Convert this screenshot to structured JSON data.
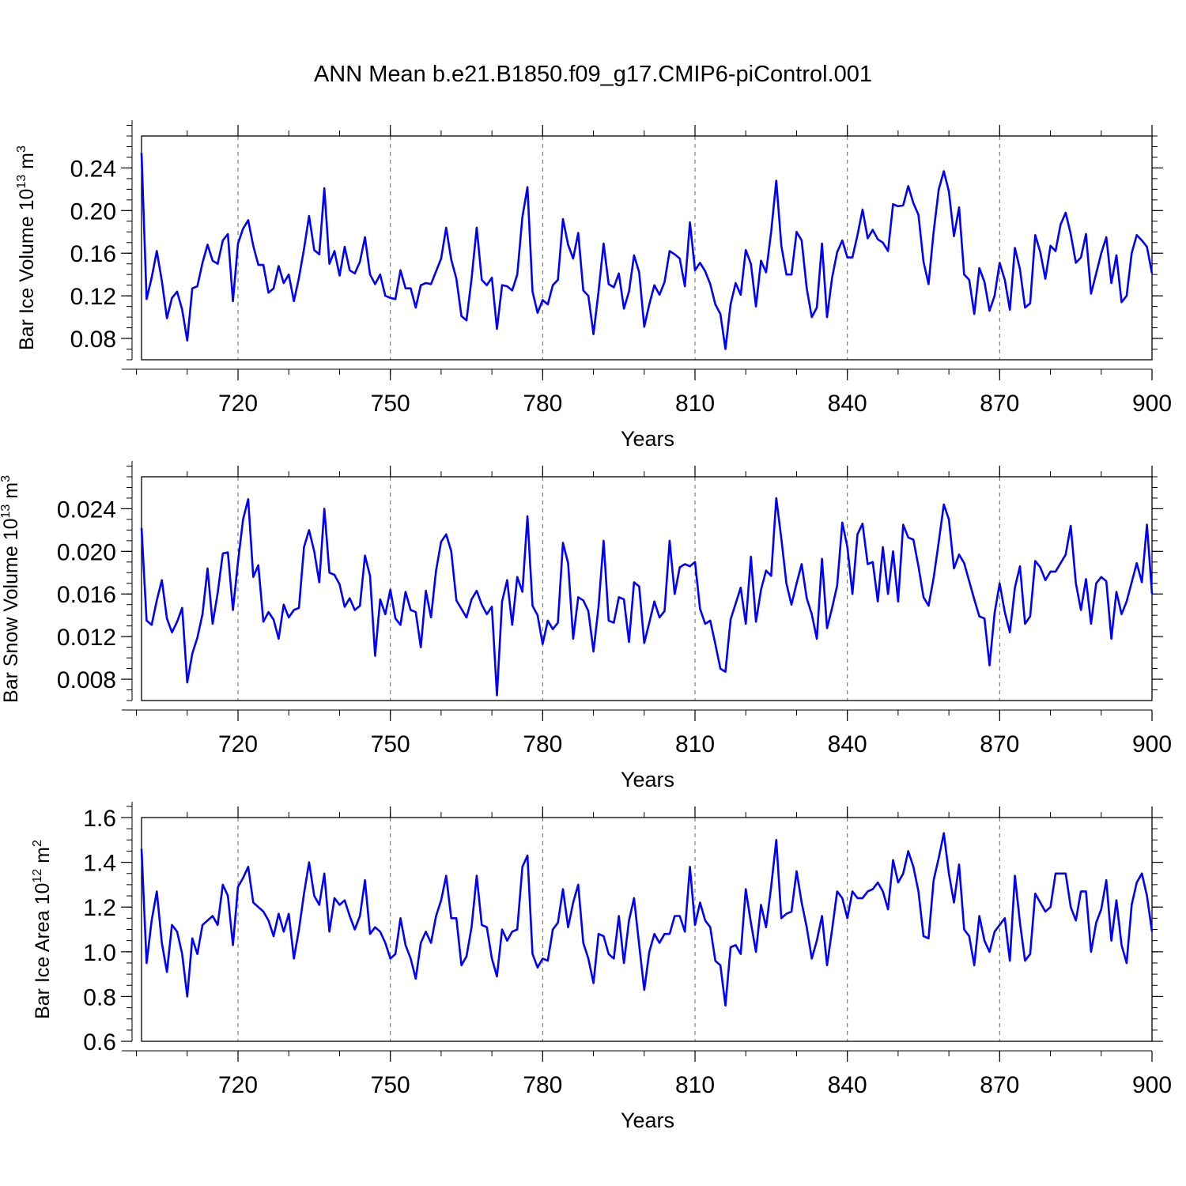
{
  "title": "ANN Mean b.e21.B1850.f09_g17.CMIP6-piControl.001",
  "line_color": "#0000FF",
  "chart_data": [
    {
      "type": "line",
      "id": "ice-volume",
      "ylabel_main": "Bar Ice Volume 10",
      "ylabel_exp": "13",
      "ylabel_unit": " m",
      "ylabel_unit_exp": "3",
      "xlabel": "Years",
      "xlim": [
        701,
        900
      ],
      "ylim": [
        0.06,
        0.27
      ],
      "xticks": [
        720,
        750,
        780,
        810,
        840,
        870,
        900
      ],
      "xtick_labels": [
        "720",
        "750",
        "780",
        "810",
        "840",
        "870",
        "900"
      ],
      "yticks": [
        0.08,
        0.12,
        0.16,
        0.2,
        0.24
      ],
      "ytick_labels": [
        "0.08",
        "0.12",
        "0.16",
        "0.20",
        "0.24"
      ],
      "x_start": 701,
      "values": [
        0.254,
        0.117,
        0.137,
        0.162,
        0.134,
        0.099,
        0.118,
        0.124,
        0.107,
        0.078,
        0.127,
        0.129,
        0.151,
        0.168,
        0.153,
        0.15,
        0.172,
        0.178,
        0.115,
        0.169,
        0.183,
        0.191,
        0.167,
        0.149,
        0.149,
        0.123,
        0.127,
        0.148,
        0.132,
        0.14,
        0.115,
        0.137,
        0.164,
        0.195,
        0.163,
        0.159,
        0.221,
        0.15,
        0.162,
        0.139,
        0.166,
        0.144,
        0.141,
        0.152,
        0.175,
        0.14,
        0.131,
        0.14,
        0.12,
        0.118,
        0.117,
        0.144,
        0.127,
        0.127,
        0.109,
        0.13,
        0.132,
        0.131,
        0.143,
        0.155,
        0.184,
        0.154,
        0.136,
        0.101,
        0.097,
        0.136,
        0.184,
        0.135,
        0.13,
        0.137,
        0.089,
        0.13,
        0.129,
        0.125,
        0.14,
        0.194,
        0.222,
        0.124,
        0.104,
        0.116,
        0.112,
        0.13,
        0.135,
        0.192,
        0.168,
        0.155,
        0.179,
        0.125,
        0.12,
        0.084,
        0.124,
        0.169,
        0.131,
        0.128,
        0.141,
        0.108,
        0.124,
        0.158,
        0.142,
        0.091,
        0.112,
        0.13,
        0.121,
        0.133,
        0.162,
        0.159,
        0.155,
        0.129,
        0.189,
        0.144,
        0.151,
        0.143,
        0.131,
        0.112,
        0.103,
        0.07,
        0.112,
        0.132,
        0.121,
        0.163,
        0.15,
        0.11,
        0.153,
        0.142,
        0.18,
        0.228,
        0.167,
        0.14,
        0.14,
        0.18,
        0.172,
        0.127,
        0.1,
        0.109,
        0.169,
        0.1,
        0.137,
        0.161,
        0.172,
        0.156,
        0.156,
        0.177,
        0.201,
        0.174,
        0.182,
        0.173,
        0.17,
        0.162,
        0.206,
        0.204,
        0.205,
        0.223,
        0.207,
        0.196,
        0.152,
        0.131,
        0.18,
        0.22,
        0.237,
        0.218,
        0.176,
        0.203,
        0.14,
        0.135,
        0.103,
        0.146,
        0.133,
        0.106,
        0.12,
        0.151,
        0.135,
        0.107,
        0.165,
        0.145,
        0.109,
        0.113,
        0.177,
        0.161,
        0.136,
        0.167,
        0.162,
        0.187,
        0.198,
        0.178,
        0.151,
        0.156,
        0.178,
        0.122,
        0.141,
        0.16,
        0.175,
        0.132,
        0.158,
        0.114,
        0.12,
        0.16,
        0.177,
        0.172,
        0.166,
        0.141
      ]
    },
    {
      "type": "line",
      "id": "snow-volume",
      "ylabel_main": "Bar Snow Volume 10",
      "ylabel_exp": "13",
      "ylabel_unit": " m",
      "ylabel_unit_exp": "3",
      "xlabel": "Years",
      "xlim": [
        701,
        900
      ],
      "ylim": [
        0.006,
        0.027
      ],
      "xticks": [
        720,
        750,
        780,
        810,
        840,
        870,
        900
      ],
      "xtick_labels": [
        "720",
        "750",
        "780",
        "810",
        "840",
        "870",
        "900"
      ],
      "yticks": [
        0.008,
        0.012,
        0.016,
        0.02,
        0.024
      ],
      "ytick_labels": [
        "0.008",
        "0.012",
        "0.016",
        "0.020",
        "0.024"
      ],
      "x_start": 701,
      "values": [
        0.0222,
        0.0135,
        0.0131,
        0.0154,
        0.0173,
        0.0137,
        0.0124,
        0.0134,
        0.0147,
        0.0077,
        0.0104,
        0.0119,
        0.0141,
        0.0184,
        0.0132,
        0.0161,
        0.0198,
        0.0199,
        0.0145,
        0.019,
        0.023,
        0.0249,
        0.0176,
        0.0187,
        0.0134,
        0.0143,
        0.0136,
        0.0118,
        0.015,
        0.0138,
        0.0145,
        0.0147,
        0.0204,
        0.022,
        0.02,
        0.0171,
        0.024,
        0.018,
        0.0178,
        0.0169,
        0.0148,
        0.0156,
        0.0145,
        0.0149,
        0.0196,
        0.0177,
        0.0102,
        0.0155,
        0.0141,
        0.0164,
        0.0137,
        0.0131,
        0.0162,
        0.0145,
        0.0143,
        0.011,
        0.0163,
        0.0138,
        0.0182,
        0.0209,
        0.0216,
        0.02,
        0.0154,
        0.0146,
        0.0138,
        0.0155,
        0.0163,
        0.015,
        0.0141,
        0.0148,
        0.0065,
        0.0153,
        0.0173,
        0.0131,
        0.0176,
        0.0162,
        0.0233,
        0.0149,
        0.014,
        0.0113,
        0.0135,
        0.0127,
        0.0133,
        0.0208,
        0.0189,
        0.0118,
        0.0157,
        0.0154,
        0.0144,
        0.0106,
        0.0148,
        0.021,
        0.0135,
        0.0133,
        0.0157,
        0.0155,
        0.0115,
        0.0171,
        0.0167,
        0.0114,
        0.0133,
        0.0153,
        0.0138,
        0.0144,
        0.021,
        0.016,
        0.0185,
        0.0188,
        0.0186,
        0.019,
        0.0146,
        0.0132,
        0.0135,
        0.0113,
        0.009,
        0.0087,
        0.0136,
        0.0151,
        0.0166,
        0.0132,
        0.0195,
        0.0134,
        0.0164,
        0.0182,
        0.0177,
        0.025,
        0.0212,
        0.017,
        0.015,
        0.017,
        0.0188,
        0.0156,
        0.0141,
        0.0118,
        0.0193,
        0.0128,
        0.0147,
        0.0168,
        0.0227,
        0.0204,
        0.016,
        0.0216,
        0.0226,
        0.0188,
        0.019,
        0.0153,
        0.0204,
        0.016,
        0.02,
        0.0153,
        0.0225,
        0.0213,
        0.0211,
        0.0186,
        0.0157,
        0.0149,
        0.0175,
        0.0209,
        0.0244,
        0.023,
        0.0184,
        0.0197,
        0.0189,
        0.0172,
        0.0155,
        0.0139,
        0.0137,
        0.0093,
        0.0142,
        0.017,
        0.0143,
        0.0124,
        0.0166,
        0.0186,
        0.0132,
        0.0139,
        0.0191,
        0.0185,
        0.0173,
        0.0181,
        0.0181,
        0.0189,
        0.0197,
        0.0224,
        0.017,
        0.0145,
        0.0174,
        0.0132,
        0.017,
        0.0176,
        0.0172,
        0.0118,
        0.0162,
        0.0141,
        0.0153,
        0.0171,
        0.0189,
        0.0171,
        0.0225,
        0.016
      ]
    },
    {
      "type": "line",
      "id": "ice-area",
      "ylabel_main": "Bar Ice Area 10",
      "ylabel_exp": "12",
      "ylabel_unit": " m",
      "ylabel_unit_exp": "2",
      "xlabel": "Years",
      "xlim": [
        701,
        900
      ],
      "ylim": [
        0.6,
        1.6
      ],
      "xticks": [
        720,
        750,
        780,
        810,
        840,
        870,
        900
      ],
      "xtick_labels": [
        "720",
        "750",
        "780",
        "810",
        "840",
        "870",
        "900"
      ],
      "yticks": [
        0.6,
        0.8,
        1.0,
        1.2,
        1.4,
        1.6
      ],
      "ytick_labels": [
        "0.6",
        "0.8",
        "1.0",
        "1.2",
        "1.4",
        "1.6"
      ],
      "x_start": 701,
      "values": [
        1.46,
        0.95,
        1.14,
        1.27,
        1.04,
        0.91,
        1.12,
        1.09,
        0.99,
        0.8,
        1.06,
        0.99,
        1.12,
        1.14,
        1.16,
        1.12,
        1.3,
        1.25,
        1.03,
        1.29,
        1.33,
        1.38,
        1.22,
        1.2,
        1.18,
        1.14,
        1.07,
        1.17,
        1.09,
        1.17,
        0.97,
        1.1,
        1.26,
        1.4,
        1.25,
        1.21,
        1.35,
        1.09,
        1.24,
        1.21,
        1.23,
        1.16,
        1.1,
        1.16,
        1.32,
        1.08,
        1.11,
        1.09,
        1.04,
        0.97,
        0.99,
        1.15,
        1.03,
        0.97,
        0.88,
        1.04,
        1.09,
        1.04,
        1.16,
        1.23,
        1.34,
        1.15,
        1.15,
        0.94,
        0.98,
        1.11,
        1.34,
        1.12,
        1.11,
        0.97,
        0.89,
        1.1,
        1.05,
        1.09,
        1.1,
        1.38,
        1.43,
        0.99,
        0.93,
        0.97,
        0.96,
        1.1,
        1.13,
        1.28,
        1.11,
        1.22,
        1.3,
        1.04,
        0.97,
        0.86,
        1.08,
        1.07,
        0.99,
        0.97,
        1.16,
        0.95,
        1.14,
        1.24,
        1.03,
        0.83,
        1.0,
        1.08,
        1.04,
        1.08,
        1.08,
        1.16,
        1.16,
        1.09,
        1.38,
        1.12,
        1.22,
        1.14,
        1.11,
        0.96,
        0.94,
        0.76,
        1.02,
        1.03,
        0.99,
        1.28,
        1.13,
        1.0,
        1.21,
        1.11,
        1.29,
        1.5,
        1.15,
        1.17,
        1.18,
        1.36,
        1.22,
        1.11,
        0.97,
        1.05,
        1.16,
        0.94,
        1.1,
        1.27,
        1.24,
        1.15,
        1.27,
        1.24,
        1.24,
        1.27,
        1.28,
        1.31,
        1.27,
        1.19,
        1.41,
        1.31,
        1.35,
        1.45,
        1.38,
        1.27,
        1.07,
        1.06,
        1.32,
        1.42,
        1.53,
        1.35,
        1.22,
        1.39,
        1.1,
        1.07,
        0.94,
        1.16,
        1.05,
        1.0,
        1.09,
        1.12,
        1.15,
        0.96,
        1.34,
        1.13,
        0.96,
        0.99,
        1.26,
        1.22,
        1.18,
        1.2,
        1.35,
        1.35,
        1.35,
        1.2,
        1.14,
        1.27,
        1.27,
        1.0,
        1.13,
        1.19,
        1.32,
        1.05,
        1.23,
        1.03,
        0.95,
        1.21,
        1.31,
        1.35,
        1.25,
        1.09
      ]
    }
  ]
}
